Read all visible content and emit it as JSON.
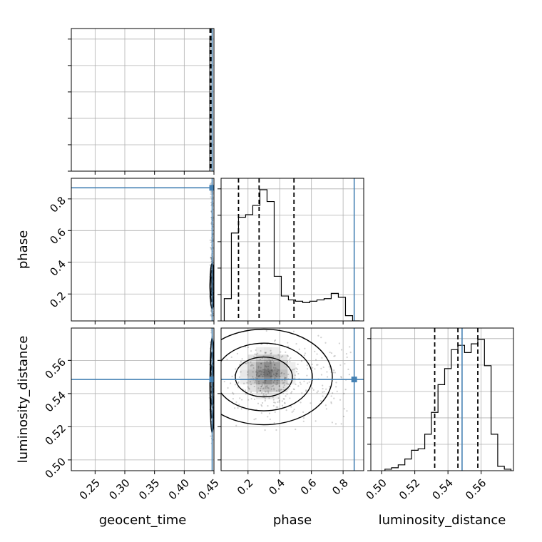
{
  "chart_data": {
    "type": "corner",
    "parameters": [
      "geocent_time",
      "phase",
      "luminosity_distance"
    ],
    "truths": {
      "geocent_time": 0.447,
      "phase": 0.87,
      "luminosity_distance": 0.5485
    },
    "colors": {
      "truth": "#4682b4",
      "hist": "#000000",
      "grid": "#b0b0b0",
      "density": "#000000"
    },
    "axes": {
      "geocent_time": {
        "range": [
          0.21,
          0.45
        ],
        "ticks": [
          0.25,
          0.3,
          0.35,
          0.4,
          0.45
        ],
        "tick_labels": [
          "0.25",
          "0.30",
          "0.35",
          "0.40",
          "0.45"
        ]
      },
      "phase": {
        "range": [
          0.03,
          0.93
        ],
        "ticks": [
          0.2,
          0.4,
          0.6,
          0.8
        ],
        "tick_labels": [
          "0.2",
          "0.4",
          "0.6",
          "0.8"
        ]
      },
      "luminosity_distance": {
        "range": [
          0.4935,
          0.5795
        ],
        "ticks": [
          0.5,
          0.52,
          0.54,
          0.56
        ],
        "tick_labels": [
          "0.50",
          "0.52",
          "0.54",
          "0.56"
        ]
      }
    },
    "marginals": [
      {
        "parameter": "geocent_time",
        "histogram_edges": [
          0.4432,
          0.4452
        ],
        "counts": [
          100
        ],
        "quantiles": [
          0.4434,
          0.4444,
          0.445
        ]
      },
      {
        "parameter": "phase",
        "histogram_edges": [
          0.05,
          0.095,
          0.14,
          0.185,
          0.23,
          0.275,
          0.32,
          0.365,
          0.41,
          0.455,
          0.5,
          0.545,
          0.59,
          0.635,
          0.68,
          0.725,
          0.77,
          0.815,
          0.86,
          0.905
        ],
        "counts": [
          17,
          67,
          79,
          81,
          88,
          100,
          91,
          34,
          19,
          16,
          15,
          14,
          15,
          16,
          17,
          21,
          18,
          4,
          0
        ],
        "quantiles": [
          0.14,
          0.27,
          0.49
        ]
      },
      {
        "parameter": "luminosity_distance",
        "histogram_edges": [
          0.502,
          0.506,
          0.51,
          0.514,
          0.518,
          0.522,
          0.526,
          0.53,
          0.534,
          0.538,
          0.542,
          0.546,
          0.55,
          0.554,
          0.558,
          0.562,
          0.566,
          0.57,
          0.574,
          0.578
        ],
        "counts": [
          1,
          2,
          4,
          8,
          14,
          15,
          25,
          40,
          59,
          70,
          83,
          86,
          81,
          87,
          90,
          72,
          25,
          3,
          1
        ],
        "quantiles": [
          0.532,
          0.546,
          0.558
        ]
      }
    ],
    "pairs": [
      {
        "x": "geocent_time",
        "y": "phase",
        "center": [
          0.447,
          0.25
        ],
        "spread": [
          0.0015,
          0.06
        ]
      },
      {
        "x": "geocent_time",
        "y": "luminosity_distance",
        "center": [
          0.447,
          0.545
        ],
        "spread": [
          0.0015,
          0.012
        ]
      },
      {
        "x": "phase",
        "y": "luminosity_distance",
        "center": [
          0.3,
          0.55
        ],
        "spread": [
          0.18,
          0.012
        ]
      }
    ]
  }
}
